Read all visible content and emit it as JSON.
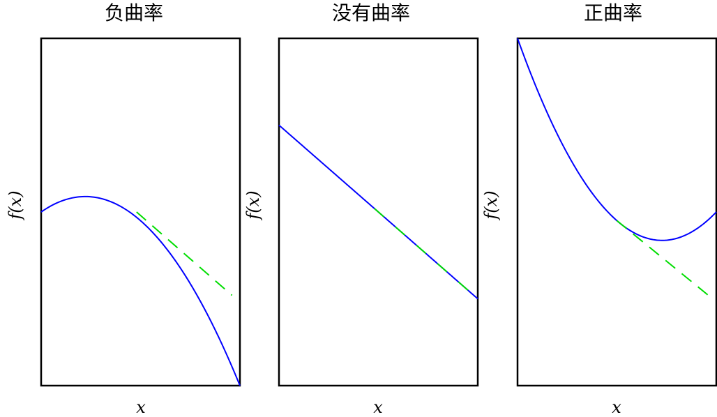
{
  "chart_data": [
    {
      "type": "line",
      "title": "负曲率",
      "xlabel": "x",
      "ylabel": "f(x)",
      "xlim": [
        0,
        1
      ],
      "ylim": [
        0,
        1
      ],
      "grid": false,
      "legend": "none",
      "curve": {
        "color": "#0000ff",
        "kind": "quadratic",
        "coefficients": [
          0.5,
          0.4,
          -0.9
        ]
      },
      "tangent": {
        "color": "#00dd00",
        "style": "dashed",
        "x_start": 0.48,
        "x_end": 0.96,
        "y_start": 0.5,
        "y_end": 0.26
      }
    },
    {
      "type": "line",
      "title": "没有曲率",
      "xlabel": "x",
      "ylabel": "f(x)",
      "xlim": [
        0,
        1
      ],
      "ylim": [
        0,
        1
      ],
      "grid": false,
      "legend": "none",
      "curve": {
        "color": "#0000ff",
        "kind": "quadratic",
        "coefficients": [
          0.75,
          -0.5,
          0
        ]
      },
      "tangent": {
        "color": "#00dd00",
        "style": "dashed",
        "x_start": 0.48,
        "x_end": 1.0,
        "y_start": 0.51,
        "y_end": 0.25
      }
    },
    {
      "type": "line",
      "title": "正曲率",
      "xlabel": "x",
      "ylabel": "f(x)",
      "xlim": [
        0,
        1
      ],
      "ylim": [
        0,
        1
      ],
      "grid": false,
      "legend": "none",
      "curve": {
        "color": "#0000ff",
        "kind": "quadratic",
        "coefficients": [
          1.0,
          -1.6,
          1.1
        ]
      },
      "tangent": {
        "color": "#00dd00",
        "style": "dashed",
        "x_start": 0.5,
        "x_end": 0.96,
        "y_start": 0.475,
        "y_end": 0.26
      }
    }
  ]
}
